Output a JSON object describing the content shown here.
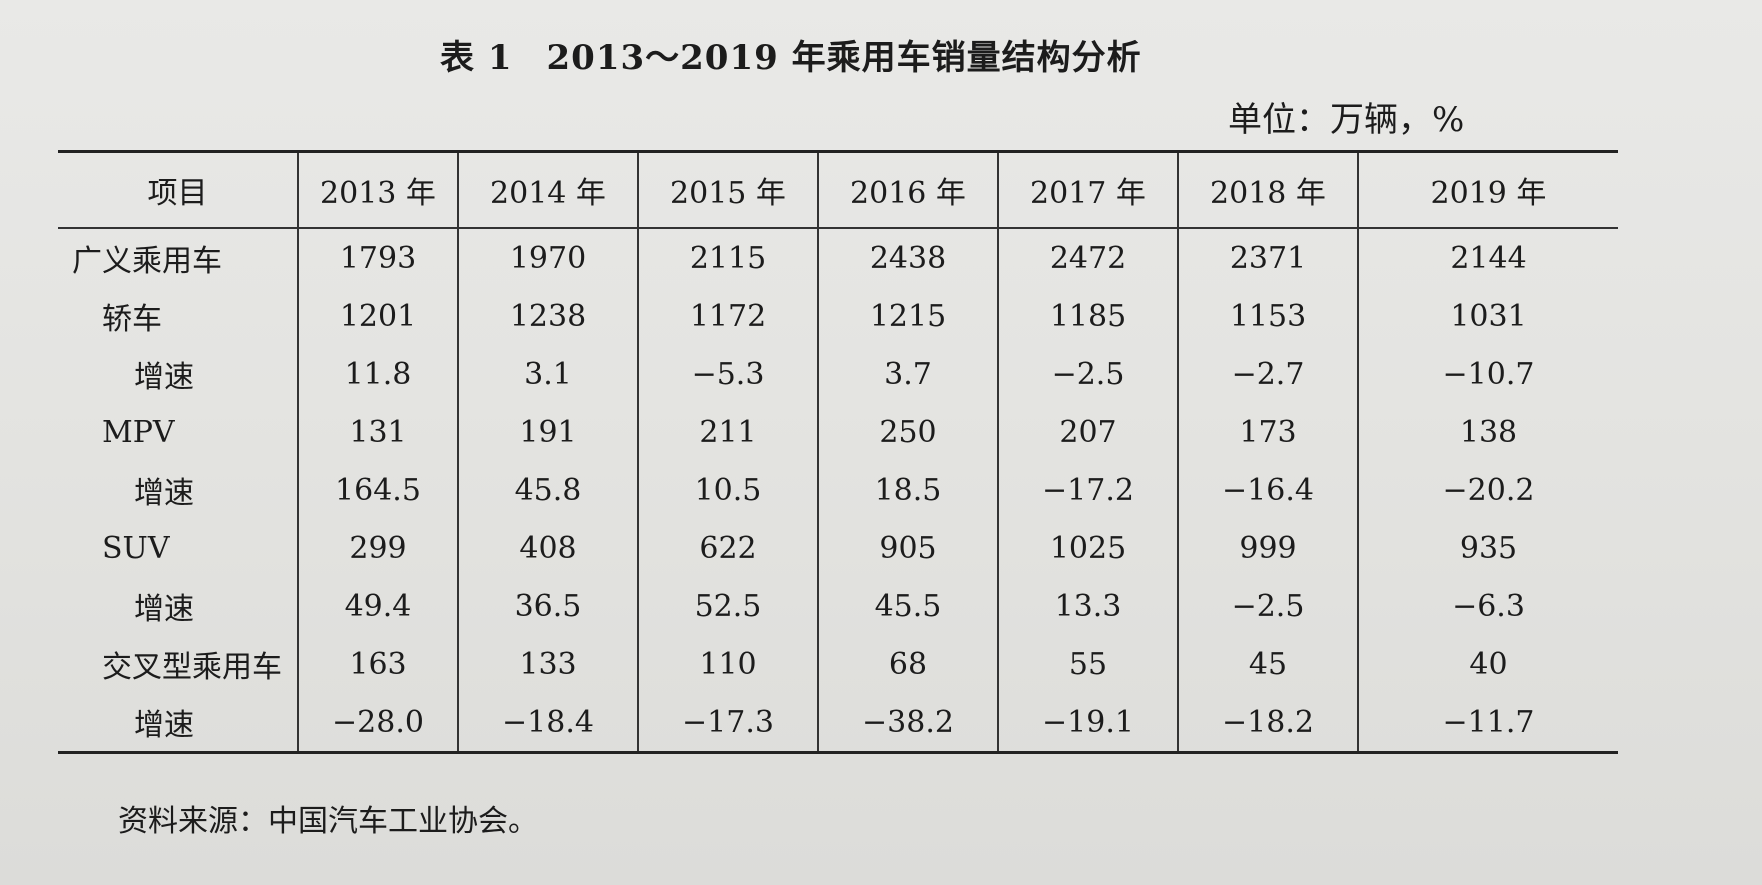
{
  "title": {
    "label": "表 1",
    "text": "2013～2019 年乘用车销量结构分析"
  },
  "unit": "单位：万辆，%",
  "table": {
    "headers": [
      "项目",
      "2013 年",
      "2014 年",
      "2015 年",
      "2016 年",
      "2017 年",
      "2018 年",
      "2019 年"
    ],
    "rows": [
      {
        "item": "广义乘用车",
        "values": [
          "1793",
          "1970",
          "2115",
          "2438",
          "2472",
          "2371",
          "2144"
        ]
      },
      {
        "item": "轿车",
        "values": [
          "1201",
          "1238",
          "1172",
          "1215",
          "1185",
          "1153",
          "1031"
        ]
      },
      {
        "item": "增速",
        "values": [
          "11.8",
          "3.1",
          "−5.3",
          "3.7",
          "−2.5",
          "−2.7",
          "−10.7"
        ]
      },
      {
        "item": "MPV",
        "values": [
          "131",
          "191",
          "211",
          "250",
          "207",
          "173",
          "138"
        ]
      },
      {
        "item": "增速",
        "values": [
          "164.5",
          "45.8",
          "10.5",
          "18.5",
          "−17.2",
          "−16.4",
          "−20.2"
        ]
      },
      {
        "item": "SUV",
        "values": [
          "299",
          "408",
          "622",
          "905",
          "1025",
          "999",
          "935"
        ]
      },
      {
        "item": "增速",
        "values": [
          "49.4",
          "36.5",
          "52.5",
          "45.5",
          "13.3",
          "−2.5",
          "−6.3"
        ]
      },
      {
        "item": "交叉型乘用车",
        "values": [
          "163",
          "133",
          "110",
          "68",
          "55",
          "45",
          "40"
        ]
      },
      {
        "item": "增速",
        "values": [
          "−28.0",
          "−18.4",
          "−17.3",
          "−38.2",
          "−19.1",
          "−18.2",
          "−11.7"
        ]
      }
    ]
  },
  "source": "资料来源：中国汽车工业协会。"
}
